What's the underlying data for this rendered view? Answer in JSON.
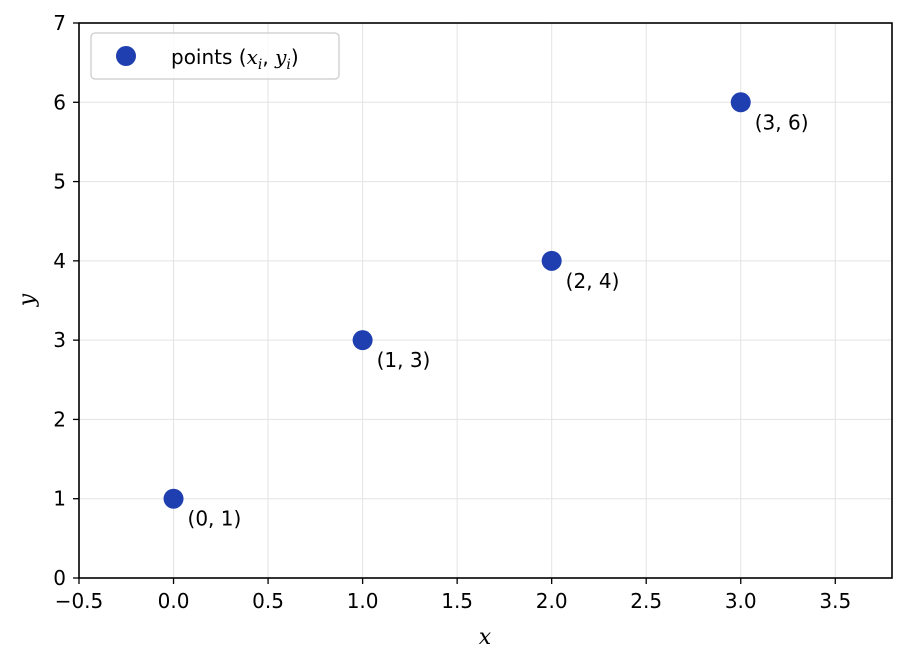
{
  "chart_data": {
    "type": "scatter",
    "xlabel": "x",
    "ylabel": "y",
    "xlim": [
      -0.5,
      3.8
    ],
    "ylim": [
      0,
      7
    ],
    "x_ticks": [
      -0.5,
      0.0,
      0.5,
      1.0,
      1.5,
      2.0,
      2.5,
      3.0,
      3.5
    ],
    "x_tick_labels": [
      "−0.5",
      "0.0",
      "0.5",
      "1.0",
      "1.5",
      "2.0",
      "2.5",
      "3.0",
      "3.5"
    ],
    "y_ticks": [
      0,
      1,
      2,
      3,
      4,
      5,
      6,
      7
    ],
    "y_tick_labels": [
      "0",
      "1",
      "2",
      "3",
      "4",
      "5",
      "6",
      "7"
    ],
    "grid": true,
    "legend_position": "top-left",
    "series": [
      {
        "name": "points (x_i, y_i)",
        "color": "#1f3fb0",
        "x": [
          0,
          1,
          2,
          3
        ],
        "y": [
          1,
          3,
          4,
          6
        ],
        "point_labels": [
          "(0, 1)",
          "(1, 3)",
          "(2, 4)",
          "(3, 6)"
        ]
      }
    ]
  },
  "legend": {
    "prefix": "points (",
    "x_sym": "x",
    "y_sym": "y",
    "sub": "i",
    "sep": ", ",
    "suffix": ")"
  }
}
